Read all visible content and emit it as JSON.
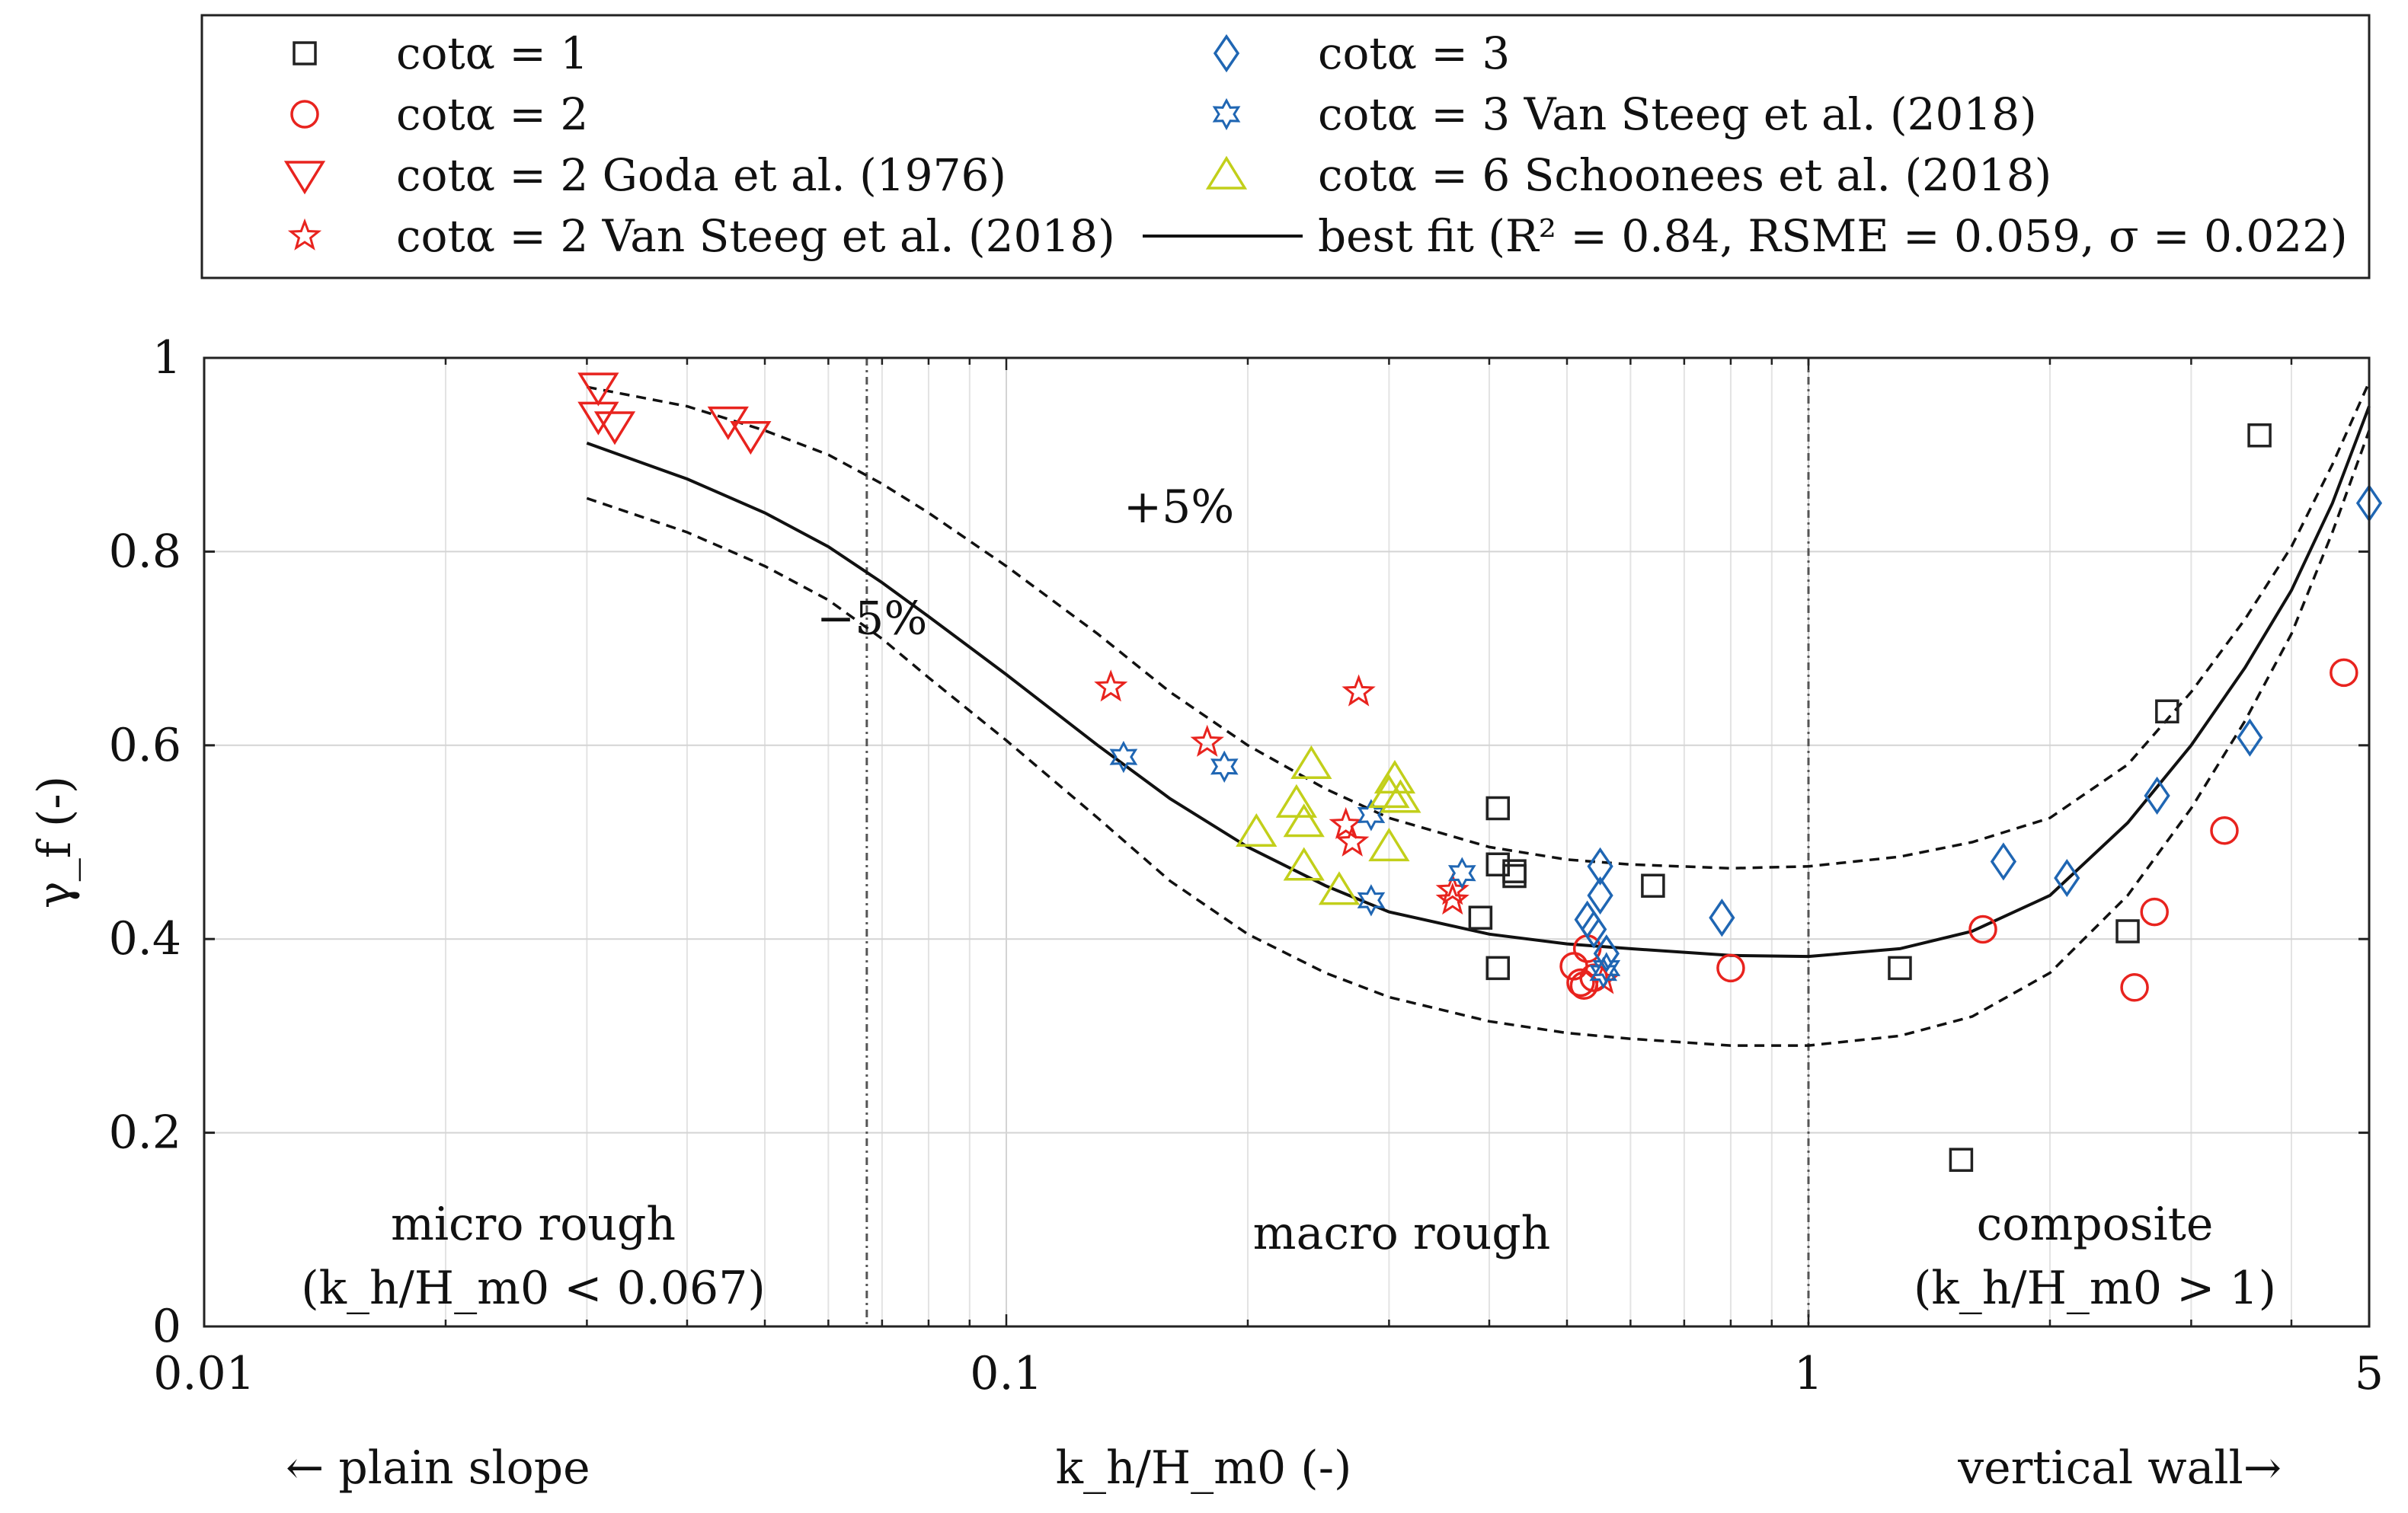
{
  "chart_data": {
    "type": "scatter",
    "xscale": "log",
    "xlim": [
      0.01,
      5
    ],
    "ylim": [
      0,
      1
    ],
    "xlabel": "k_h/H_m0 (-)",
    "ylabel": "γ_f (-)",
    "xticks": [
      0.01,
      0.1,
      1,
      5
    ],
    "xtick_labels": [
      "0.01",
      "0.1",
      "1",
      "5"
    ],
    "yticks": [
      0,
      0.2,
      0.4,
      0.6,
      0.8,
      1
    ],
    "ytick_labels": [
      "0",
      "0.2",
      "0.4",
      "0.6",
      "0.8",
      "1"
    ],
    "grid": true,
    "reference_lines_x": [
      0.067,
      1
    ],
    "bottom_labels": {
      "left": "← plain slope",
      "center": "k_h/H_m0 (-)",
      "right": "vertical wall→"
    },
    "regions": [
      {
        "name": "micro rough",
        "label": "micro rough",
        "condition": "(k_h/H_m0 < 0.067)"
      },
      {
        "name": "macro rough",
        "label": "macro rough",
        "condition": ""
      },
      {
        "name": "composite",
        "label": "composite",
        "condition": "(k_h/H_m0 > 1)"
      }
    ],
    "annotations": [
      {
        "text": "+5%",
        "x": 0.14,
        "y": 0.83
      },
      {
        "text": "−5%",
        "x": 0.058,
        "y": 0.715
      }
    ],
    "series": [
      {
        "name": "cotα = 1",
        "marker": "square",
        "color": "#222222",
        "points": [
          [
            0.41,
            0.535
          ],
          [
            0.41,
            0.477
          ],
          [
            0.43,
            0.465
          ],
          [
            0.43,
            0.47
          ],
          [
            0.39,
            0.422
          ],
          [
            0.41,
            0.37
          ],
          [
            0.64,
            0.455
          ],
          [
            1.3,
            0.37
          ],
          [
            1.55,
            0.172
          ],
          [
            2.8,
            0.635
          ],
          [
            2.5,
            0.408
          ],
          [
            3.65,
            0.92
          ]
        ]
      },
      {
        "name": "cotα = 2",
        "marker": "circle",
        "color": "#e8231e",
        "points": [
          [
            0.51,
            0.372
          ],
          [
            0.52,
            0.355
          ],
          [
            0.525,
            0.352
          ],
          [
            0.54,
            0.36
          ],
          [
            0.53,
            0.39
          ],
          [
            0.8,
            0.37
          ],
          [
            1.65,
            0.41
          ],
          [
            2.55,
            0.35
          ],
          [
            2.7,
            0.428
          ],
          [
            3.3,
            0.512
          ],
          [
            4.65,
            0.675
          ]
        ]
      },
      {
        "name": "cotα = 2 Goda et al. (1976)",
        "marker": "triangle-down",
        "color": "#e8231e",
        "points": [
          [
            0.031,
            0.97
          ],
          [
            0.031,
            0.94
          ],
          [
            0.0325,
            0.93
          ],
          [
            0.045,
            0.935
          ],
          [
            0.048,
            0.92
          ]
        ]
      },
      {
        "name": "cotα = 2 Van Steeg et al. (2018)",
        "marker": "star5",
        "color": "#e8231e",
        "points": [
          [
            0.135,
            0.66
          ],
          [
            0.178,
            0.603
          ],
          [
            0.265,
            0.518
          ],
          [
            0.27,
            0.5
          ],
          [
            0.275,
            0.655
          ],
          [
            0.36,
            0.45
          ],
          [
            0.36,
            0.44
          ],
          [
            0.555,
            0.358
          ]
        ]
      },
      {
        "name": "cotα = 3",
        "marker": "diamond",
        "color": "#1f66b3",
        "points": [
          [
            0.55,
            0.475
          ],
          [
            0.55,
            0.445
          ],
          [
            0.53,
            0.42
          ],
          [
            0.54,
            0.41
          ],
          [
            0.56,
            0.385
          ],
          [
            0.78,
            0.422
          ],
          [
            1.75,
            0.48
          ],
          [
            2.1,
            0.463
          ],
          [
            2.72,
            0.548
          ],
          [
            3.55,
            0.608
          ],
          [
            5.0,
            0.85
          ]
        ]
      },
      {
        "name": "cotα = 3 Van Steeg et al. (2018)",
        "marker": "star6",
        "color": "#1f66b3",
        "points": [
          [
            0.14,
            0.588
          ],
          [
            0.187,
            0.578
          ],
          [
            0.285,
            0.528
          ],
          [
            0.285,
            0.44
          ],
          [
            0.37,
            0.468
          ],
          [
            0.555,
            0.365
          ],
          [
            0.56,
            0.37
          ]
        ]
      },
      {
        "name": "cotα = 6 Schoonees et al. (2018)",
        "marker": "triangle-up",
        "color": "#c2cf1a",
        "points": [
          [
            0.205,
            0.51
          ],
          [
            0.23,
            0.54
          ],
          [
            0.235,
            0.52
          ],
          [
            0.24,
            0.58
          ],
          [
            0.235,
            0.475
          ],
          [
            0.26,
            0.45
          ],
          [
            0.3,
            0.55
          ],
          [
            0.305,
            0.565
          ],
          [
            0.3,
            0.495
          ],
          [
            0.31,
            0.545
          ]
        ]
      },
      {
        "name": "best fit (R² = 0.84, RSME = 0.059, σ = 0.022)",
        "marker": "line",
        "color": "#111111",
        "points": [
          [
            0.03,
            0.912
          ],
          [
            0.04,
            0.875
          ],
          [
            0.05,
            0.84
          ],
          [
            0.06,
            0.805
          ],
          [
            0.07,
            0.768
          ],
          [
            0.08,
            0.733
          ],
          [
            0.1,
            0.673
          ],
          [
            0.13,
            0.6
          ],
          [
            0.16,
            0.545
          ],
          [
            0.2,
            0.495
          ],
          [
            0.25,
            0.455
          ],
          [
            0.3,
            0.428
          ],
          [
            0.4,
            0.405
          ],
          [
            0.5,
            0.395
          ],
          [
            0.6,
            0.39
          ],
          [
            0.8,
            0.383
          ],
          [
            1.0,
            0.382
          ],
          [
            1.3,
            0.39
          ],
          [
            1.6,
            0.408
          ],
          [
            2.0,
            0.445
          ],
          [
            2.5,
            0.52
          ],
          [
            3.0,
            0.6
          ],
          [
            3.5,
            0.68
          ],
          [
            4.0,
            0.76
          ],
          [
            4.5,
            0.85
          ],
          [
            5.0,
            0.95
          ]
        ]
      },
      {
        "name": "+5%",
        "marker": "dashed",
        "color": "#111111",
        "points": [
          [
            0.03,
            0.97
          ],
          [
            0.04,
            0.95
          ],
          [
            0.05,
            0.925
          ],
          [
            0.06,
            0.9
          ],
          [
            0.07,
            0.87
          ],
          [
            0.08,
            0.84
          ],
          [
            0.1,
            0.785
          ],
          [
            0.13,
            0.715
          ],
          [
            0.16,
            0.655
          ],
          [
            0.2,
            0.6
          ],
          [
            0.25,
            0.555
          ],
          [
            0.3,
            0.525
          ],
          [
            0.4,
            0.495
          ],
          [
            0.5,
            0.482
          ],
          [
            0.6,
            0.477
          ],
          [
            0.8,
            0.473
          ],
          [
            1.0,
            0.475
          ],
          [
            1.3,
            0.485
          ],
          [
            1.6,
            0.5
          ],
          [
            2.0,
            0.525
          ],
          [
            2.5,
            0.58
          ],
          [
            3.0,
            0.655
          ],
          [
            3.5,
            0.73
          ],
          [
            4.0,
            0.805
          ],
          [
            4.5,
            0.89
          ],
          [
            5.0,
            0.975
          ]
        ]
      },
      {
        "name": "−5%",
        "marker": "dashed",
        "color": "#111111",
        "points": [
          [
            0.03,
            0.855
          ],
          [
            0.04,
            0.82
          ],
          [
            0.05,
            0.785
          ],
          [
            0.06,
            0.75
          ],
          [
            0.07,
            0.71
          ],
          [
            0.08,
            0.67
          ],
          [
            0.1,
            0.605
          ],
          [
            0.13,
            0.525
          ],
          [
            0.16,
            0.46
          ],
          [
            0.2,
            0.405
          ],
          [
            0.25,
            0.365
          ],
          [
            0.3,
            0.34
          ],
          [
            0.4,
            0.315
          ],
          [
            0.5,
            0.303
          ],
          [
            0.6,
            0.297
          ],
          [
            0.8,
            0.29
          ],
          [
            1.0,
            0.29
          ],
          [
            1.3,
            0.3
          ],
          [
            1.6,
            0.32
          ],
          [
            2.0,
            0.365
          ],
          [
            2.5,
            0.445
          ],
          [
            3.0,
            0.535
          ],
          [
            3.5,
            0.625
          ],
          [
            4.0,
            0.715
          ],
          [
            4.5,
            0.82
          ],
          [
            5.0,
            0.925
          ]
        ]
      }
    ]
  }
}
